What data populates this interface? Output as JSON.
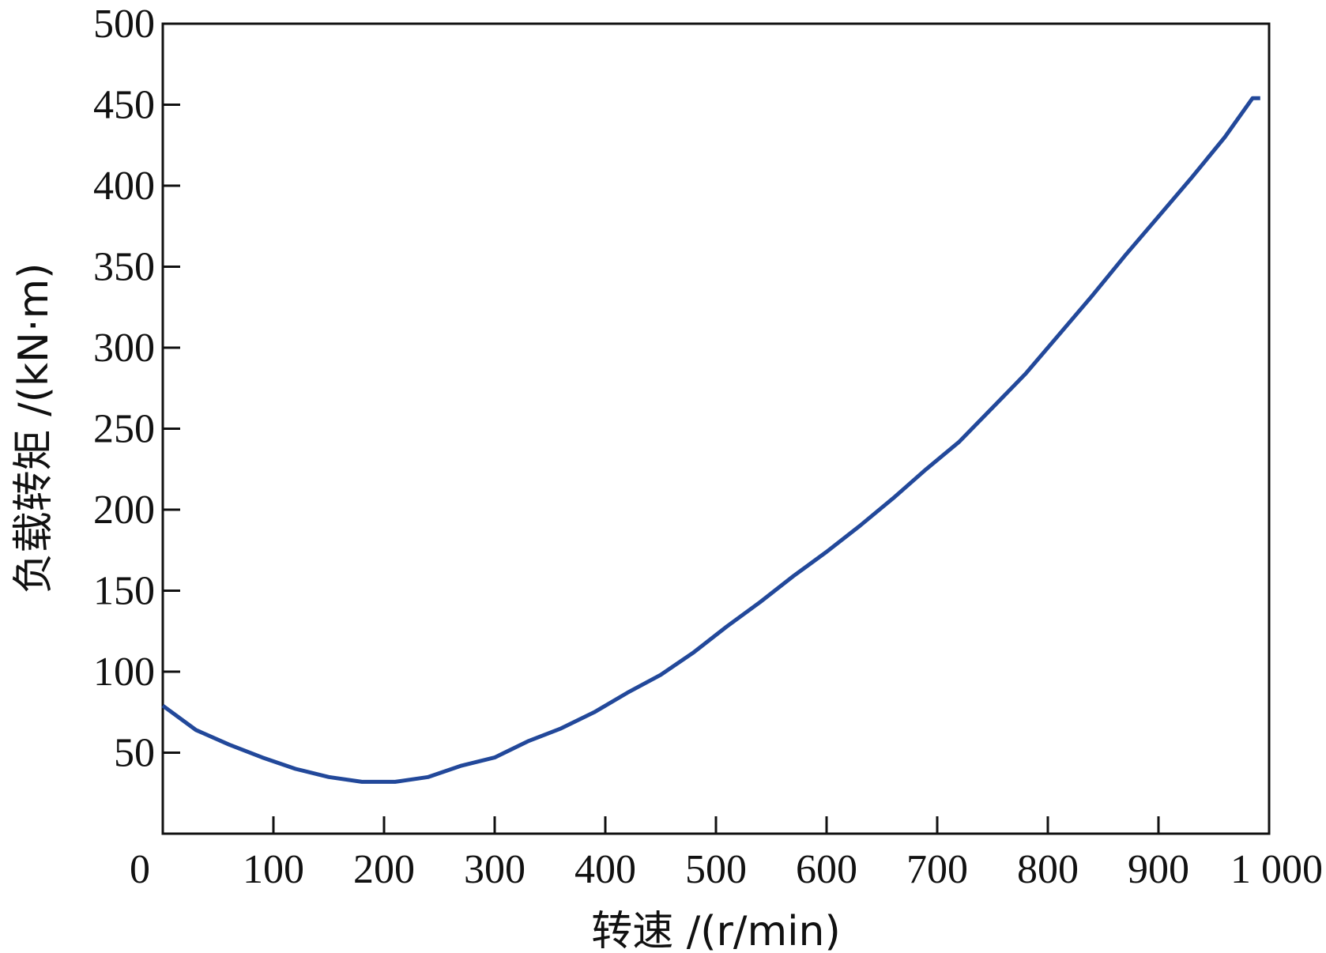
{
  "chart_data": {
    "type": "line",
    "xlabel": "转速 /(r/min)",
    "ylabel": "负载转矩 /(kN·m)",
    "xlim": [
      0,
      1000
    ],
    "ylim": [
      0,
      500
    ],
    "x_ticks": [
      0,
      100,
      200,
      300,
      400,
      500,
      600,
      700,
      800,
      900,
      1000
    ],
    "x_tick_labels": [
      "0",
      "100",
      "200",
      "300",
      "400",
      "500",
      "600",
      "700",
      "800",
      "900",
      "1 000"
    ],
    "y_ticks": [
      50,
      100,
      150,
      200,
      250,
      300,
      350,
      400,
      450,
      500
    ],
    "y_tick_labels": [
      "50",
      "100",
      "150",
      "200",
      "250",
      "300",
      "350",
      "400",
      "450",
      "500"
    ],
    "grid": false,
    "line_color": "#22489a",
    "series": [
      {
        "x": [
          0,
          30,
          60,
          90,
          120,
          150,
          180,
          210,
          240,
          270,
          300,
          330,
          360,
          390,
          420,
          450,
          480,
          510,
          540,
          570,
          600,
          630,
          660,
          690,
          720,
          750,
          780,
          810,
          840,
          870,
          900,
          930,
          960,
          985,
          992
        ],
        "values": [
          79,
          64,
          55,
          47,
          40,
          35,
          32,
          32,
          35,
          42,
          47,
          57,
          65,
          75,
          87,
          98,
          112,
          128,
          143,
          159,
          174,
          190,
          207,
          225,
          242,
          263,
          284,
          308,
          332,
          357,
          381,
          405,
          430,
          454,
          454
        ]
      }
    ]
  }
}
